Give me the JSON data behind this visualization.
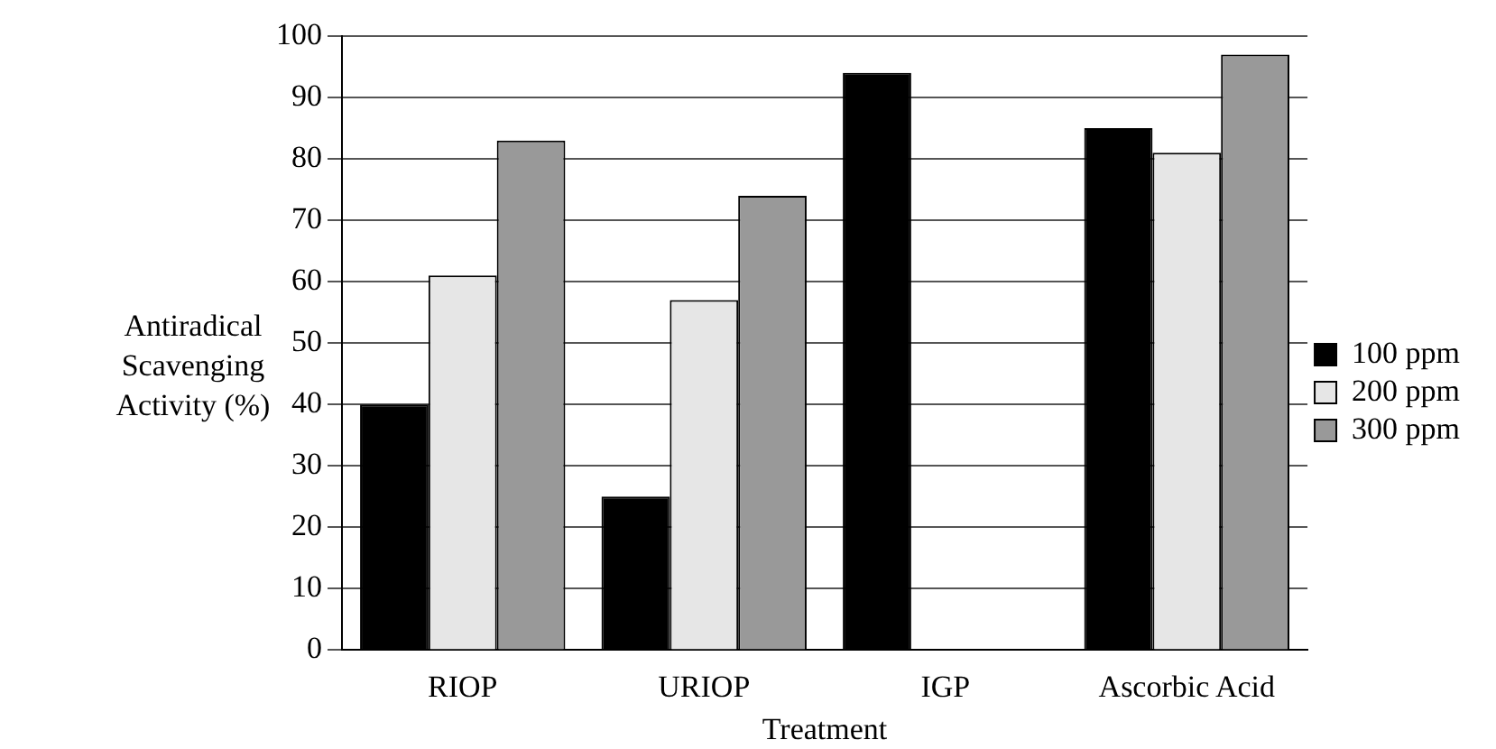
{
  "chart_data": {
    "type": "bar",
    "xlabel": "Treatment",
    "ylabel": "Antiradical Scavenging Activity (%)",
    "categories": [
      "RIOP",
      "URIOP",
      "IGP",
      "Ascorbic Acid"
    ],
    "series": [
      {
        "name": "100 ppm",
        "color": "#000000",
        "values": [
          40,
          25,
          94,
          85
        ]
      },
      {
        "name": "200 ppm",
        "color": "#e6e6e6",
        "values": [
          61,
          57,
          null,
          81
        ]
      },
      {
        "name": "300 ppm",
        "color": "#999999",
        "values": [
          83,
          74,
          null,
          97
        ]
      }
    ],
    "ylim": [
      0,
      100
    ],
    "yticks": [
      0,
      10,
      20,
      30,
      40,
      50,
      60,
      70,
      80,
      90,
      100
    ],
    "grid": "y",
    "legend": "right"
  }
}
